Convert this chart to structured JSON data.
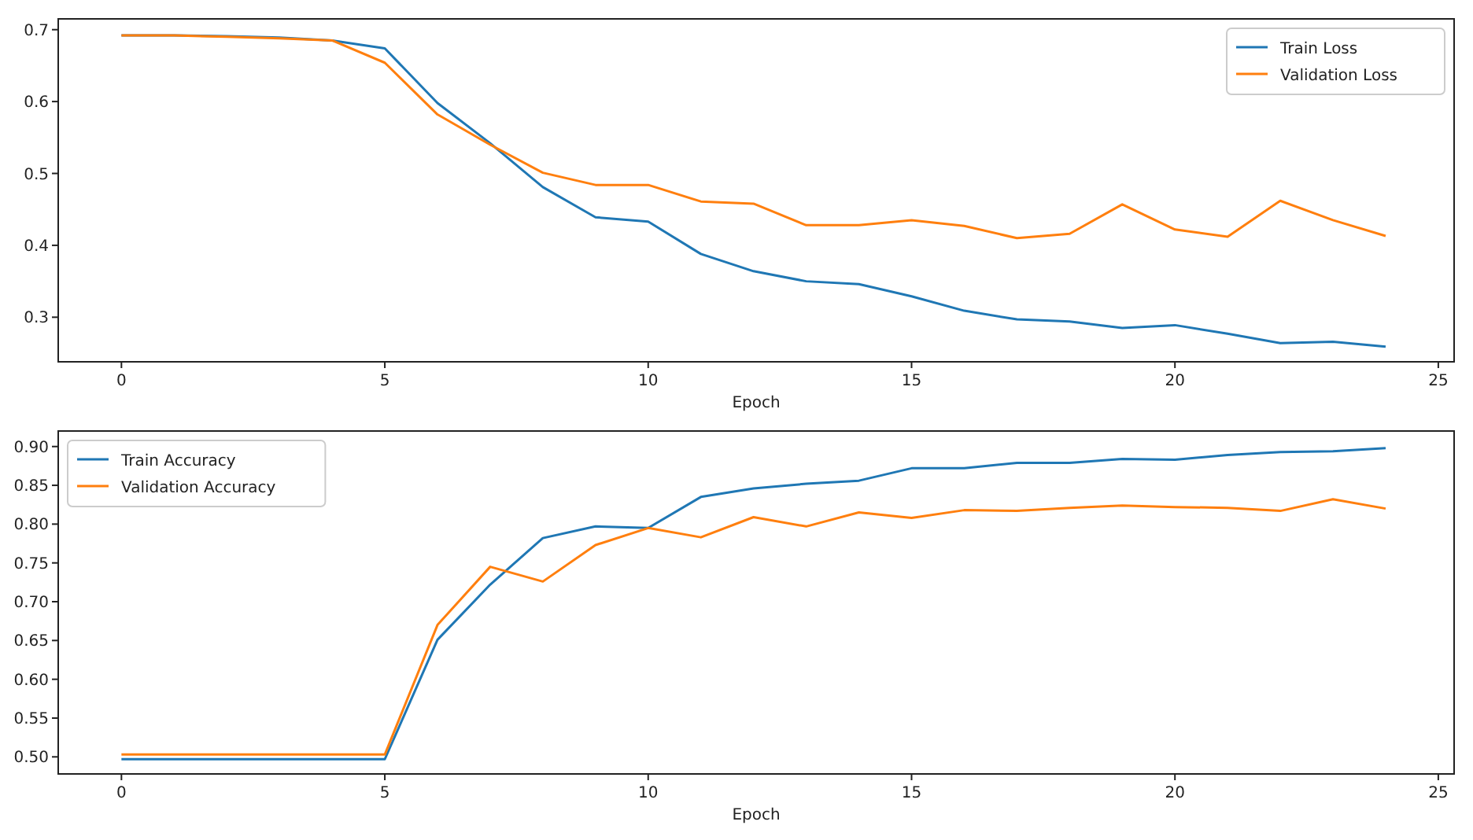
{
  "chart_data": [
    {
      "type": "line",
      "xlabel": "Epoch",
      "x": [
        0,
        1,
        2,
        3,
        4,
        5,
        6,
        7,
        8,
        9,
        10,
        11,
        12,
        13,
        14,
        15,
        16,
        17,
        18,
        19,
        20,
        21,
        22,
        23,
        24
      ],
      "xlim": [
        -1.2,
        25.3
      ],
      "xticks": [
        0,
        5,
        10,
        15,
        20,
        25
      ],
      "ylim": [
        0.238,
        0.715
      ],
      "yticks": [
        0.3,
        0.4,
        0.5,
        0.6,
        0.7
      ],
      "legend": "top right",
      "grid": false,
      "series": [
        {
          "name": "Train Loss",
          "color": "#1f77b4",
          "values": [
            0.692,
            0.692,
            0.691,
            0.689,
            0.685,
            0.674,
            0.598,
            0.542,
            0.481,
            0.439,
            0.433,
            0.388,
            0.364,
            0.35,
            0.346,
            0.329,
            0.309,
            0.297,
            0.294,
            0.285,
            0.289,
            0.277,
            0.264,
            0.266,
            0.259
          ]
        },
        {
          "name": "Validation Loss",
          "color": "#ff7f0e",
          "values": [
            0.692,
            0.692,
            0.69,
            0.688,
            0.685,
            0.654,
            0.582,
            0.54,
            0.501,
            0.484,
            0.484,
            0.461,
            0.458,
            0.428,
            0.428,
            0.435,
            0.427,
            0.41,
            0.416,
            0.457,
            0.422,
            0.412,
            0.462,
            0.435,
            0.413
          ]
        }
      ]
    },
    {
      "type": "line",
      "xlabel": "Epoch",
      "x": [
        0,
        1,
        2,
        3,
        4,
        5,
        6,
        7,
        8,
        9,
        10,
        11,
        12,
        13,
        14,
        15,
        16,
        17,
        18,
        19,
        20,
        21,
        22,
        23,
        24
      ],
      "xlim": [
        -1.2,
        25.3
      ],
      "xticks": [
        0,
        5,
        10,
        15,
        20,
        25
      ],
      "ylim": [
        0.478,
        0.92
      ],
      "yticks": [
        {
          "value": 0.5,
          "label": "0.50"
        },
        {
          "value": 0.55,
          "label": "0.55"
        },
        {
          "value": 0.6,
          "label": "0.60"
        },
        {
          "value": 0.65,
          "label": "0.65"
        },
        {
          "value": 0.7,
          "label": "0.70"
        },
        {
          "value": 0.75,
          "label": "0.75"
        },
        {
          "value": 0.8,
          "label": "0.80"
        },
        {
          "value": 0.85,
          "label": "0.85"
        },
        {
          "value": 0.9,
          "label": "0.90"
        }
      ],
      "legend": "top left",
      "grid": false,
      "series": [
        {
          "name": "Train Accuracy",
          "color": "#1f77b4",
          "values": [
            0.497,
            0.497,
            0.497,
            0.497,
            0.497,
            0.497,
            0.651,
            0.722,
            0.782,
            0.797,
            0.795,
            0.835,
            0.846,
            0.852,
            0.856,
            0.872,
            0.872,
            0.879,
            0.879,
            0.884,
            0.883,
            0.889,
            0.893,
            0.894,
            0.898
          ]
        },
        {
          "name": "Validation Accuracy",
          "color": "#ff7f0e",
          "values": [
            0.503,
            0.503,
            0.503,
            0.503,
            0.503,
            0.503,
            0.67,
            0.745,
            0.726,
            0.773,
            0.795,
            0.783,
            0.809,
            0.797,
            0.815,
            0.808,
            0.818,
            0.817,
            0.821,
            0.824,
            0.822,
            0.821,
            0.817,
            0.832,
            0.82
          ]
        }
      ]
    }
  ]
}
